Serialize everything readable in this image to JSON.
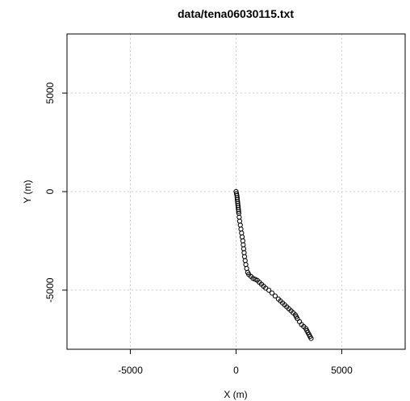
{
  "chart_data": {
    "type": "scatter",
    "title": "data/tena06030115.txt",
    "xlabel": "X (m)",
    "ylabel": "Y (m)",
    "xlim": [
      -8000,
      8000
    ],
    "ylim": [
      -8000,
      8000
    ],
    "x_ticks": [
      -5000,
      0,
      5000
    ],
    "y_ticks": [
      -5000,
      0,
      5000
    ],
    "x_tick_labels": [
      "-5000",
      "0",
      "5000"
    ],
    "y_tick_labels": [
      "-5000",
      "0",
      "5000"
    ],
    "grid": true,
    "marker": "open-circle",
    "colors": {
      "points": "#000000",
      "grid": "#cccccc",
      "frame": "#000000"
    },
    "series": [
      {
        "x": [
          0,
          20,
          40,
          50,
          60,
          70,
          80,
          90,
          100,
          110,
          120,
          130,
          150,
          170,
          200,
          230,
          260,
          290,
          320,
          340,
          360,
          380,
          400,
          430,
          460,
          500,
          550,
          600,
          700,
          800,
          900,
          1000,
          1100,
          1200,
          1300,
          1400,
          1550,
          1700,
          1850,
          2000,
          2100,
          2200,
          2300,
          2400,
          2500,
          2600,
          2700,
          2800,
          2850,
          2900,
          3000,
          3100,
          3200,
          3300,
          3350,
          3400,
          3450,
          3500,
          3550
        ],
        "y": [
          0,
          -100,
          -200,
          -300,
          -400,
          -500,
          -600,
          -700,
          -800,
          -900,
          -1000,
          -1100,
          -1300,
          -1500,
          -1700,
          -1900,
          -2100,
          -2300,
          -2500,
          -2700,
          -2900,
          -3100,
          -3300,
          -3500,
          -3700,
          -3900,
          -4100,
          -4200,
          -4300,
          -4400,
          -4450,
          -4500,
          -4600,
          -4700,
          -4800,
          -4900,
          -5000,
          -5150,
          -5300,
          -5450,
          -5550,
          -5650,
          -5750,
          -5850,
          -5950,
          -6050,
          -6150,
          -6250,
          -6350,
          -6450,
          -6600,
          -6750,
          -6850,
          -6950,
          -7050,
          -7150,
          -7250,
          -7350,
          -7450
        ]
      }
    ]
  }
}
